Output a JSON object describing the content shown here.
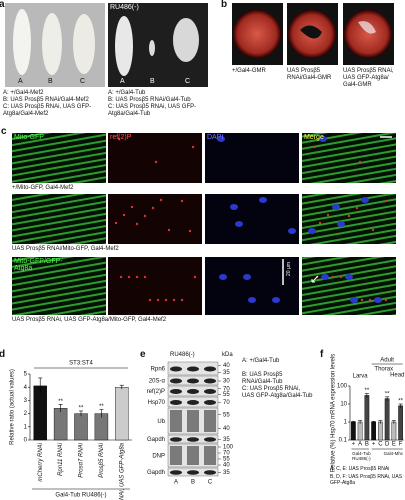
{
  "panel_a": {
    "label": "a",
    "header": "RU486(-)",
    "image_labels": [
      "A",
      "B",
      "C"
    ],
    "left_legend": [
      "A: +/Gal4-Mef2",
      "B: UAS Prosβ5 RNAi/Gal4-Mef2",
      "C: UAS Prosβ5 RNAi, UAS GFP-Atg8a/Gal4-Mef2"
    ],
    "right_legend": [
      "A: +/Gal4-Tub",
      "B: UAS Prosβ5 RNAi/Gal4-Tub",
      "C: UAS Prosβ5 RNAi, UAS GFP-Atg8a/Gal4-Tub"
    ]
  },
  "panel_b": {
    "label": "b",
    "captions": [
      "+/Gal4-GMR",
      "UAS Prosβ5 RNAi/Gal4-GMR",
      "UAS Prosβ5 RNAi, UAS GFP-Atg8a/ Gal4-GMR"
    ]
  },
  "panel_c": {
    "label": "c",
    "columns": [
      "Mito-GFP",
      "ref(2)P",
      "DAPI",
      "Merge"
    ],
    "rows": [
      "+/Mito-GFP, Gal4-Mef2",
      "UAS Prosβ5 RNAi/Mito-GFP, Gal4-Mef2",
      "UAS Prosβ5 RNAi, UAS GFP-Atg8a/Mito-GFP, Gal4-Mef2"
    ],
    "overlay_label": "Mito-GFP/GFP-Atg8a",
    "scale": "20 μm"
  },
  "panel_e": {
    "label": "e",
    "header": "RU486(-)",
    "kda_header": "kDa",
    "blots": [
      {
        "name": "Rpn6",
        "kda": [
          40,
          35
        ]
      },
      {
        "name": "20S-α",
        "kda": [
          30
        ]
      },
      {
        "name": "ref(2)P",
        "kda": [
          70,
          55
        ]
      },
      {
        "name": "Hsp70",
        "kda": [
          70
        ]
      },
      {
        "name": "Ub",
        "kda": [
          55,
          40
        ]
      },
      {
        "name": "Gapdh",
        "kda": [
          35
        ]
      },
      {
        "name": "DNP",
        "kda": [
          100,
          70,
          55,
          40
        ]
      },
      {
        "name": "Gapdh",
        "kda": [
          35
        ]
      }
    ],
    "lanes": [
      "A",
      "B",
      "C"
    ],
    "legend": [
      "A: +/Gal4-Tub",
      "B: UAS Prosβ5 RNAi/Gal4-Tub",
      "C: UAS Prosβ5 RNAi, UAS GFP-Atg8a/Gal4-Tub"
    ]
  },
  "chart_data": [
    {
      "type": "bar",
      "label": "d",
      "title": "ST3:ST4",
      "y_label": "Relative ratio (actual values)",
      "x_label": "Gal4-Tub RU486(-)",
      "categories": [
        "mCherry RNAi",
        "Rpn11 RNAi",
        "Prosα7 RNAi",
        "Prosβ5 RNAi",
        "Prosβ5 RNAi, UAS GFP-Atg8a"
      ],
      "values": [
        4.1,
        2.4,
        2.0,
        2.0,
        4.0
      ],
      "errors": [
        0.6,
        0.3,
        0.2,
        0.3,
        0.15
      ],
      "colors": [
        "#111111",
        "#777777",
        "#777777",
        "#777777",
        "#cccccc"
      ],
      "significance": [
        null,
        "**",
        "**",
        "**",
        null
      ],
      "ylim": [
        0,
        5
      ],
      "yticks": [
        0,
        1,
        2,
        3,
        4,
        5
      ]
    },
    {
      "type": "bar",
      "label": "f",
      "y_label": "Relative (%) Hsp70 mRNA expression levels",
      "log_scale": true,
      "categories": [
        "+",
        "A",
        "B",
        "+",
        "C",
        "D",
        "E",
        "F"
      ],
      "values": [
        1,
        1,
        30,
        1,
        1,
        20,
        1,
        8
      ],
      "errors": [
        0.1,
        0.2,
        8,
        0.1,
        0.2,
        5,
        0.2,
        2
      ],
      "colors": [
        "#111111",
        "#bbbbbb",
        "#444444",
        "#111111",
        "#bbbbbb",
        "#444444",
        "#bbbbbb",
        "#444444"
      ],
      "significance": [
        null,
        null,
        "**",
        null,
        null,
        "**",
        null,
        "**"
      ],
      "group_labels": [
        "Larva",
        "Adult"
      ],
      "tissue_labels": [
        "Thorax",
        "Head"
      ],
      "x_groups": [
        "Gal4-Tub RU486(-)",
        "Gal4-Mhc"
      ],
      "legend": [
        "A, C, E: UAS Prosβ5 RNAi",
        "B, D, F: UAS Prosβ5 RNAi, UAS GFP-Atg8a"
      ],
      "ylim": [
        0.1,
        100
      ],
      "yticks": [
        0.1,
        1,
        10,
        100
      ]
    }
  ]
}
